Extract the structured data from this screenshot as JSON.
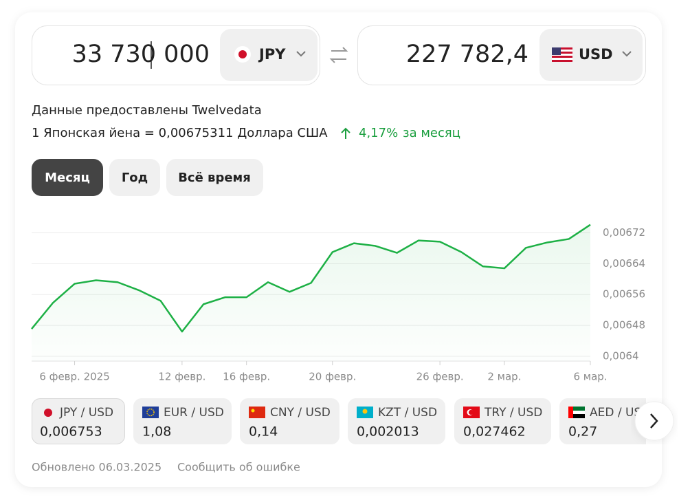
{
  "converter": {
    "from_amount": "33 730 000",
    "from_currency": "JPY",
    "to_amount": "227 782,4",
    "to_currency": "USD",
    "source": "Данные предоставлены Twelvedata",
    "rate": "1 Японская йена = 0,00675311 Доллара США",
    "change": "4,17%",
    "change_period": "за месяц"
  },
  "tabs": [
    "Месяц",
    "Год",
    "Всё время"
  ],
  "chart_data": {
    "type": "line",
    "color": "#1db045",
    "grid": true,
    "categories": [
      null,
      null,
      "6 февр. 2025",
      null,
      null,
      null,
      null,
      "12 февр.",
      null,
      null,
      "16 февр.",
      null,
      null,
      null,
      "20 февр.",
      null,
      null,
      null,
      null,
      "26 февр.",
      null,
      null,
      "2 мар.",
      null,
      null,
      null,
      "6 мар."
    ],
    "values": [
      0.006471,
      0.006539,
      0.006588,
      0.006597,
      0.006592,
      0.006571,
      0.006544,
      0.006464,
      0.006535,
      0.006553,
      0.006553,
      0.006592,
      0.006567,
      0.00659,
      0.00667,
      0.006693,
      0.006686,
      0.006668,
      0.0067,
      0.006697,
      0.00667,
      0.006633,
      0.006628,
      0.006681,
      0.006695,
      0.006704,
      0.006741
    ],
    "ylim": [
      0.0064,
      0.00676
    ],
    "yticks": [
      {
        "value": 0.0064,
        "label": "0,0064"
      },
      {
        "value": 0.00648,
        "label": "0,00648"
      },
      {
        "value": 0.00656,
        "label": "0,00656"
      },
      {
        "value": 0.00664,
        "label": "0,00664"
      },
      {
        "value": 0.00672,
        "label": "0,00672"
      }
    ]
  },
  "pairs": [
    {
      "label": "JPY / USD",
      "value": "0,006753"
    },
    {
      "label": "EUR / USD",
      "value": "1,08"
    },
    {
      "label": "CNY / USD",
      "value": "0,14"
    },
    {
      "label": "KZT / USD",
      "value": "0,002013"
    },
    {
      "label": "TRY / USD",
      "value": "0,027462"
    },
    {
      "label": "AED / USD",
      "value": "0,27"
    }
  ],
  "footer": {
    "updated": "Обновлено 06.03.2025",
    "report": "Сообщить об ошибке"
  }
}
